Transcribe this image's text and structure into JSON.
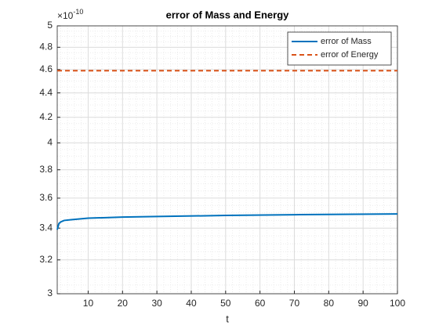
{
  "chart_data": {
    "type": "line",
    "title": "error of Mass and Energy",
    "xlabel": "t",
    "y_exponent": {
      "base": "×10",
      "power": "-10"
    },
    "xlim": [
      1,
      100
    ],
    "xticks": [
      10,
      20,
      30,
      40,
      50,
      60,
      70,
      80,
      90,
      100
    ],
    "ylim": [
      3,
      5
    ],
    "yticks": [
      3,
      3.2,
      3.4,
      3.6,
      3.8,
      4,
      4.2,
      4.4,
      4.6,
      4.8,
      5
    ],
    "ylog": true,
    "grid": true,
    "minor_grid": true,
    "legend": "northeast",
    "series": [
      {
        "name": "error of Mass",
        "color": "#0072BD",
        "dash": false,
        "x": [
          1,
          1.5,
          2,
          3,
          5,
          10,
          20,
          30,
          50,
          70,
          100
        ],
        "values": [
          3.39,
          3.43,
          3.44,
          3.45,
          3.455,
          3.465,
          3.472,
          3.476,
          3.483,
          3.488,
          3.493
        ]
      },
      {
        "name": "error of Energy",
        "color": "#D95319",
        "dash": true,
        "x": [
          1,
          100
        ],
        "values": [
          4.59,
          4.59
        ]
      }
    ]
  }
}
